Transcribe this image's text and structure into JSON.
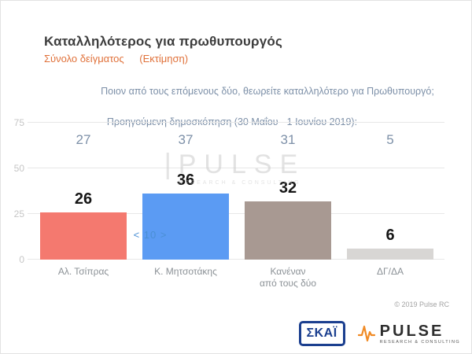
{
  "header": {
    "title": "Καταλληλότερος για πρωθυπουργός",
    "subtitle": "Σύνολο δείγματος",
    "subtitle_note": "(Εκτίμηση)"
  },
  "question": "Ποιον από τους επόμενους δύο, θεωρείτε καταλληλότερο για Πρωθυπουργό;",
  "previous_poll_label": "Προηγούμενη δημοσκόπηση (30 Μαΐου - 1 Ιουνίου 2019):",
  "chart_data": {
    "type": "bar",
    "title": "Καταλληλότερος για πρωθυπουργός",
    "categories": [
      "Αλ. Τσίπρας",
      "Κ. Μητσοτάκης",
      "Κανέναν\nαπό τους δύο",
      "ΔΓ/ΔΑ"
    ],
    "values": [
      26,
      36,
      32,
      6
    ],
    "previous_values": [
      27,
      37,
      31,
      5
    ],
    "bar_colors": [
      "#f4796f",
      "#5b9bf3",
      "#a89992",
      "#d8d6d4"
    ],
    "ylim": [
      0,
      75
    ],
    "yticks": [
      0,
      25,
      50,
      75
    ],
    "grid": true,
    "legend": "none",
    "annotation": "< 10 >"
  },
  "watermark": {
    "text": "PULSE",
    "sub": "RESEARCH & CONSULTING"
  },
  "copyright": "© 2019 Pulse RC",
  "footer": {
    "skai_logo": "ΣΚΑΪ",
    "pulse_logo": "PULSE",
    "pulse_sub": "RESEARCH & CONSULTING"
  }
}
